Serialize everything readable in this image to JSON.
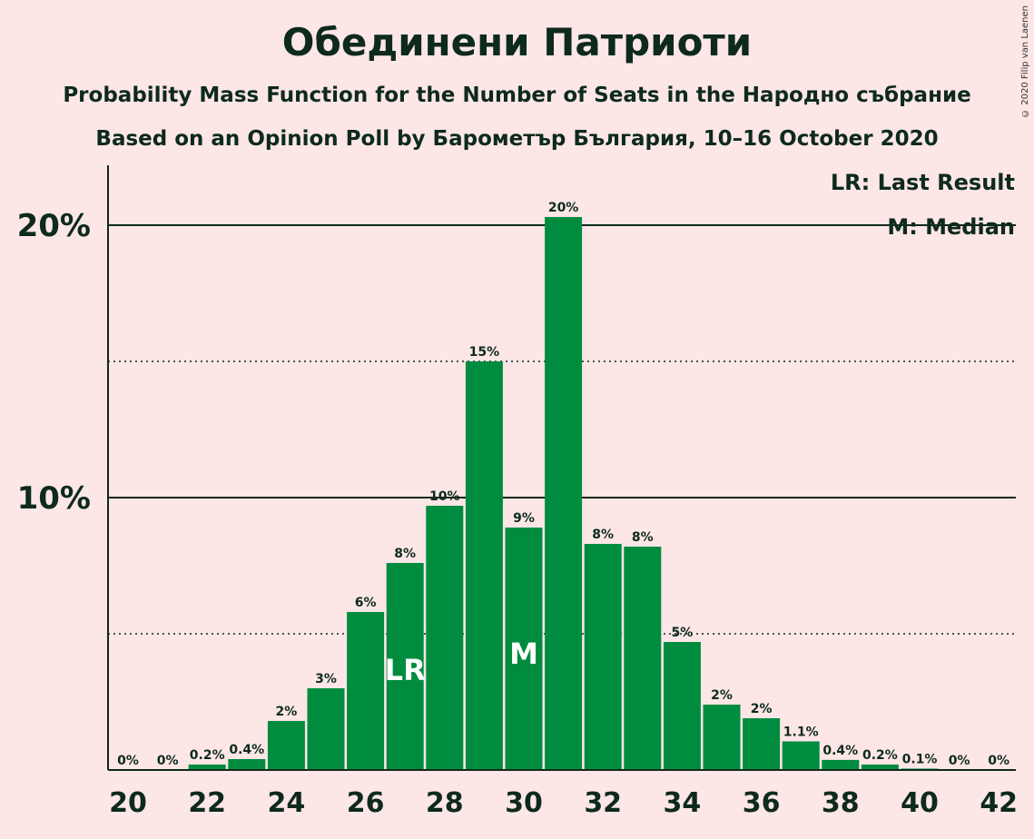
{
  "title": "Обединени Патриоти",
  "subtitle_1": "Probability Mass Function for the Number of Seats in the Народно събрание",
  "subtitle_2": "Based on an Opinion Poll by Барометър България, 10–16 October 2020",
  "copyright": "© 2020 Filip van Laenen",
  "chart_data": {
    "type": "bar",
    "x": [
      20,
      21,
      22,
      23,
      24,
      25,
      26,
      27,
      28,
      29,
      30,
      31,
      32,
      33,
      34,
      35,
      36,
      37,
      38,
      39,
      40,
      41,
      42
    ],
    "values": [
      0,
      0,
      0.2,
      0.4,
      1.8,
      3.0,
      5.8,
      7.6,
      9.7,
      15.0,
      8.9,
      20.3,
      8.3,
      8.2,
      4.7,
      2.4,
      1.9,
      1.05,
      0.37,
      0.2,
      0.05,
      0,
      0
    ],
    "data_labels": [
      "0%",
      "0%",
      "0.2%",
      "0.4%",
      "2%",
      "3%",
      "6%",
      "8%",
      "10%",
      "15%",
      "9%",
      "20%",
      "8%",
      "8%",
      "5%",
      "2%",
      "2%",
      "1.1%",
      "0.4%",
      "0.2%",
      "0.1%",
      "0%",
      "0%"
    ],
    "x_tick_labels": [
      "20",
      "22",
      "24",
      "26",
      "28",
      "30",
      "32",
      "34",
      "36",
      "38",
      "40",
      "42"
    ],
    "y_tick_labels": [
      "10%",
      "20%"
    ],
    "ylim": [
      0,
      22
    ],
    "solid_gridlines": [
      10,
      20
    ],
    "dotted_gridlines": [
      5,
      15
    ],
    "last_result_seat": 27,
    "median_seat": 30,
    "last_result_marker": "LR",
    "median_marker": "M",
    "legend": [
      "LR: Last Result",
      "M: Median"
    ],
    "legend_position": "top-right",
    "bar_color": "#008c3f",
    "background_color": "#fde6e6"
  }
}
